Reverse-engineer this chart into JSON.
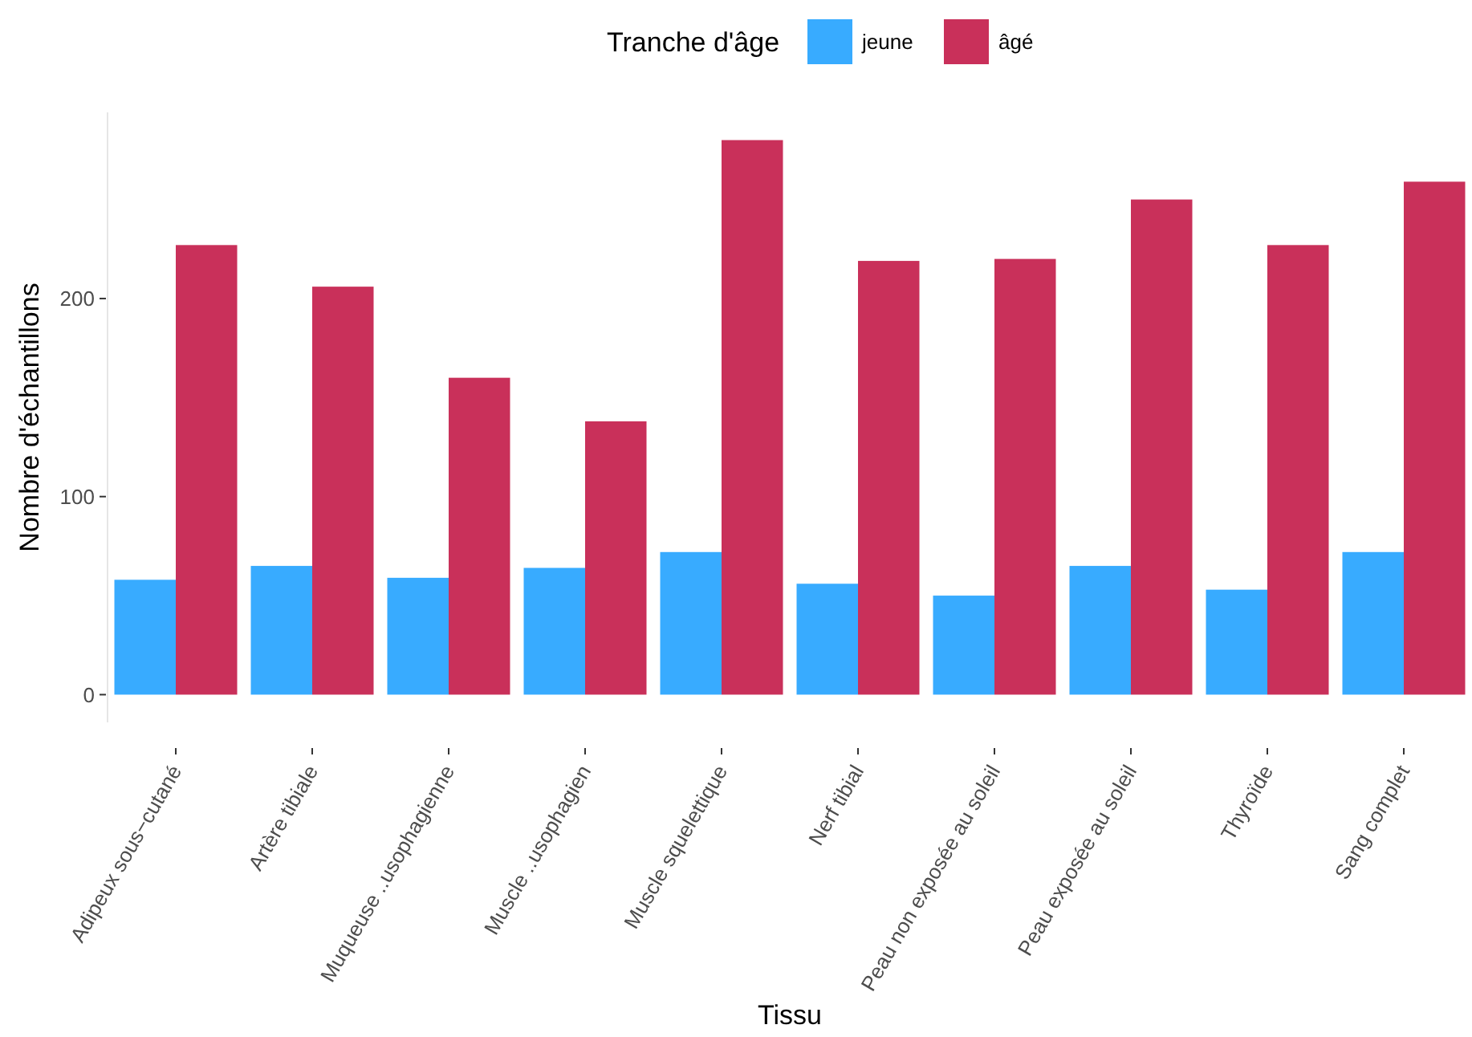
{
  "chart_data": {
    "type": "bar",
    "xlabel": "Tissu",
    "ylabel": "Nombre d'échantillons",
    "legend_title": "Tranche d'âge",
    "legend": "top",
    "categories": [
      "Adipeux sous−cutané",
      "Artère tibiale",
      "Muqueuse ..usophagienne",
      "Muscle ..usophagien",
      "Muscle squelettique",
      "Nerf tibial",
      "Peau non exposée au soleil",
      "Peau exposée au soleil",
      "Thyroïde",
      "Sang complet"
    ],
    "series": [
      {
        "name": "jeune",
        "color": "#38abff",
        "values": [
          58,
          65,
          59,
          64,
          72,
          56,
          50,
          65,
          53,
          72
        ]
      },
      {
        "name": "âgé",
        "color": "#c9305a",
        "values": [
          227,
          206,
          160,
          138,
          280,
          219,
          220,
          250,
          227,
          259
        ]
      }
    ],
    "ylim": [
      -14,
      294
    ],
    "yticks": [
      0,
      100,
      200
    ],
    "grid": false
  }
}
